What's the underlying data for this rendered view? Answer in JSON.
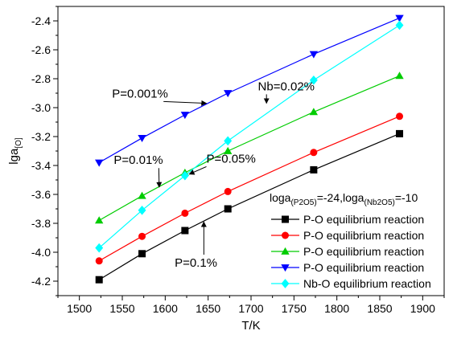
{
  "chart_data": {
    "type": "line",
    "xlabel": "T/K",
    "ylabel_main": "lga",
    "ylabel_sub": "[O]",
    "xlim": [
      1475,
      1925
    ],
    "ylim": [
      -4.3,
      -2.3
    ],
    "x_ticks": [
      1500,
      1550,
      1600,
      1650,
      1700,
      1750,
      1800,
      1850,
      1900
    ],
    "x_tick_labels": [
      "1500",
      "1550",
      "1600",
      "1650",
      "1700",
      "1750",
      "1800",
      "1850",
      "1900"
    ],
    "y_ticks": [
      -4.2,
      -4.0,
      -3.8,
      -3.6,
      -3.4,
      -3.2,
      -3.0,
      -2.8,
      -2.6,
      -2.4
    ],
    "y_tick_labels": [
      "-4.2",
      "-4.0",
      "-3.8",
      "-3.6",
      "-3.4",
      "-3.2",
      "-3.0",
      "-2.8",
      "-2.6",
      "-2.4"
    ],
    "grid": false,
    "legend_title": {
      "p1": "loga",
      "s1": "(P2O5)",
      "p2": "=-24,loga",
      "s2": "(Nb2O5)",
      "p3": "=-10"
    },
    "legend_position": "bottom-right",
    "x": [
      1523,
      1573,
      1623,
      1673,
      1773,
      1873
    ],
    "series": [
      {
        "name": "P-O equilibrium reaction",
        "color": "#000000",
        "marker": "square",
        "values": [
          -4.19,
          -4.01,
          -3.85,
          -3.7,
          -3.43,
          -3.18
        ]
      },
      {
        "name": "P-O equilibrium reaction",
        "color": "#ff0000",
        "marker": "circle",
        "values": [
          -4.06,
          -3.89,
          -3.73,
          -3.58,
          -3.31,
          -3.06
        ]
      },
      {
        "name": "P-O equilibrium reaction",
        "color": "#00cc00",
        "marker": "triangle-up",
        "values": [
          -3.78,
          -3.61,
          -3.45,
          -3.3,
          -3.03,
          -2.78
        ]
      },
      {
        "name": "P-O equilibrium reaction",
        "color": "#0000ff",
        "marker": "triangle-down",
        "values": [
          -3.38,
          -3.21,
          -3.05,
          -2.9,
          -2.63,
          -2.38
        ]
      },
      {
        "name": "Nb-O equilibrium reaction",
        "color": "#00ffff",
        "marker": "diamond",
        "values": [
          -3.97,
          -3.71,
          -3.47,
          -3.23,
          -2.81,
          -2.43
        ]
      }
    ],
    "annotations": [
      {
        "text": "P=0.001%",
        "x": 1538,
        "y": -2.93,
        "arrow_to": [
          1648,
          -2.97
        ]
      },
      {
        "text": "Nb=0.02%",
        "x": 1708,
        "y": -2.88,
        "arrow_to": [
          1718,
          -2.97
        ]
      },
      {
        "text": "P=0.01%",
        "x": 1540,
        "y": -3.39,
        "arrow_to": [
          1593,
          -3.55
        ]
      },
      {
        "text": "P=0.05%",
        "x": 1648,
        "y": -3.38,
        "arrow_to": [
          1628,
          -3.46
        ]
      },
      {
        "text": "P=0.1%",
        "x": 1611,
        "y": -4.1,
        "arrow_to": [
          1645,
          -3.79
        ]
      }
    ]
  }
}
